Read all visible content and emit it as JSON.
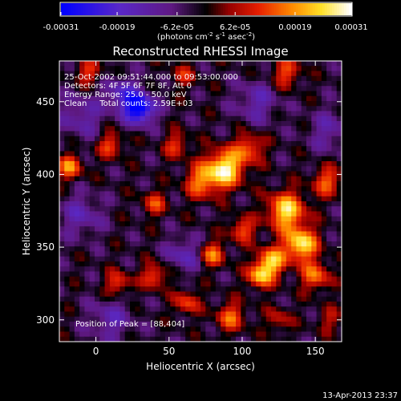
{
  "chart_data": {
    "type": "heatmap",
    "title": "Reconstructed RHESSI Image",
    "xlabel": "Heliocentric X (arcsec)",
    "ylabel": "Heliocentric Y (arcsec)",
    "xlim": [
      -25,
      168
    ],
    "ylim": [
      285,
      478
    ],
    "x_ticks": [
      0,
      50,
      100,
      150
    ],
    "y_ticks": [
      300,
      350,
      400,
      450
    ],
    "x_tick_labels": [
      "0",
      "50",
      "100",
      "150"
    ],
    "y_tick_labels": [
      "300",
      "350",
      "400",
      "450"
    ],
    "colorbar": {
      "min": -0.00031,
      "max": 0.00031,
      "tick_values": [
        -0.00031,
        -0.00019,
        -6.2e-05,
        6.2e-05,
        0.00019,
        0.00031
      ],
      "tick_labels": [
        "-0.00031",
        "-0.00019",
        "-6.2e-05",
        "6.2e-05",
        "0.00019",
        "0.00031"
      ],
      "unit_main": "(photons cm",
      "unit_exp1": "-2",
      "unit_mid": " s",
      "unit_exp2": "-1",
      "unit_mid2": " asec",
      "unit_exp3": "-2",
      "unit_end": ")"
    },
    "annotations": [
      "25-Oct-2002 09:51:44.000 to 09:53:00.000",
      "Detectors: 4F 5F 6F 7F 8F, Att 0",
      "Energy Range: 25.0 - 50.0 keV",
      "Clean     Total counts: 2.59E+03"
    ],
    "peak_text": "Position of Peak = [88,404]",
    "peak": [
      88,
      404
    ],
    "footer": "13-Apr-2013 23:37",
    "grid": false,
    "sources": [
      {
        "x": 88,
        "y": 404,
        "amp": 1.0,
        "sigma": 9
      },
      {
        "x": 72,
        "y": 395,
        "amp": 0.6,
        "sigma": 8
      },
      {
        "x": 105,
        "y": 418,
        "amp": 0.55,
        "sigma": 7
      },
      {
        "x": 130,
        "y": 375,
        "amp": 0.9,
        "sigma": 9
      },
      {
        "x": 140,
        "y": 352,
        "amp": 0.95,
        "sigma": 8
      },
      {
        "x": 120,
        "y": 340,
        "amp": 0.8,
        "sigma": 7
      },
      {
        "x": 112,
        "y": 330,
        "amp": 0.75,
        "sigma": 6
      },
      {
        "x": 150,
        "y": 330,
        "amp": 0.6,
        "sigma": 7
      },
      {
        "x": 158,
        "y": 395,
        "amp": 0.55,
        "sigma": 7
      },
      {
        "x": 100,
        "y": 362,
        "amp": 0.55,
        "sigma": 6
      },
      {
        "x": 80,
        "y": 345,
        "amp": 0.6,
        "sigma": 6
      },
      {
        "x": 92,
        "y": 302,
        "amp": 0.55,
        "sigma": 7
      },
      {
        "x": 62,
        "y": 312,
        "amp": 0.5,
        "sigma": 6
      },
      {
        "x": 40,
        "y": 330,
        "amp": 0.55,
        "sigma": 6
      },
      {
        "x": 15,
        "y": 325,
        "amp": 0.5,
        "sigma": 6
      },
      {
        "x": -18,
        "y": 405,
        "amp": 0.65,
        "sigma": 6
      },
      {
        "x": 10,
        "y": 420,
        "amp": 0.5,
        "sigma": 6
      },
      {
        "x": 55,
        "y": 420,
        "amp": 0.45,
        "sigma": 6
      },
      {
        "x": 40,
        "y": 380,
        "amp": 0.45,
        "sigma": 6
      },
      {
        "x": 130,
        "y": 470,
        "amp": 0.5,
        "sigma": 7
      },
      {
        "x": -5,
        "y": 470,
        "amp": 0.45,
        "sigma": 6
      },
      {
        "x": 60,
        "y": 468,
        "amp": 0.35,
        "sigma": 6
      },
      {
        "x": 125,
        "y": 300,
        "amp": 0.35,
        "sigma": 6
      },
      {
        "x": 160,
        "y": 300,
        "amp": 0.3,
        "sigma": 6
      },
      {
        "x": 30,
        "y": 445,
        "amp": -1.0,
        "sigma": 7
      },
      {
        "x": 18,
        "y": 455,
        "amp": -0.5,
        "sigma": 8
      },
      {
        "x": -10,
        "y": 440,
        "amp": -0.35,
        "sigma": 10
      },
      {
        "x": -10,
        "y": 372,
        "amp": -0.35,
        "sigma": 10
      },
      {
        "x": 10,
        "y": 300,
        "amp": -0.35,
        "sigma": 10
      },
      {
        "x": 60,
        "y": 345,
        "amp": -0.4,
        "sigma": 8
      },
      {
        "x": 110,
        "y": 450,
        "amp": -0.35,
        "sigma": 10
      },
      {
        "x": 160,
        "y": 430,
        "amp": -0.3,
        "sigma": 10
      }
    ]
  }
}
